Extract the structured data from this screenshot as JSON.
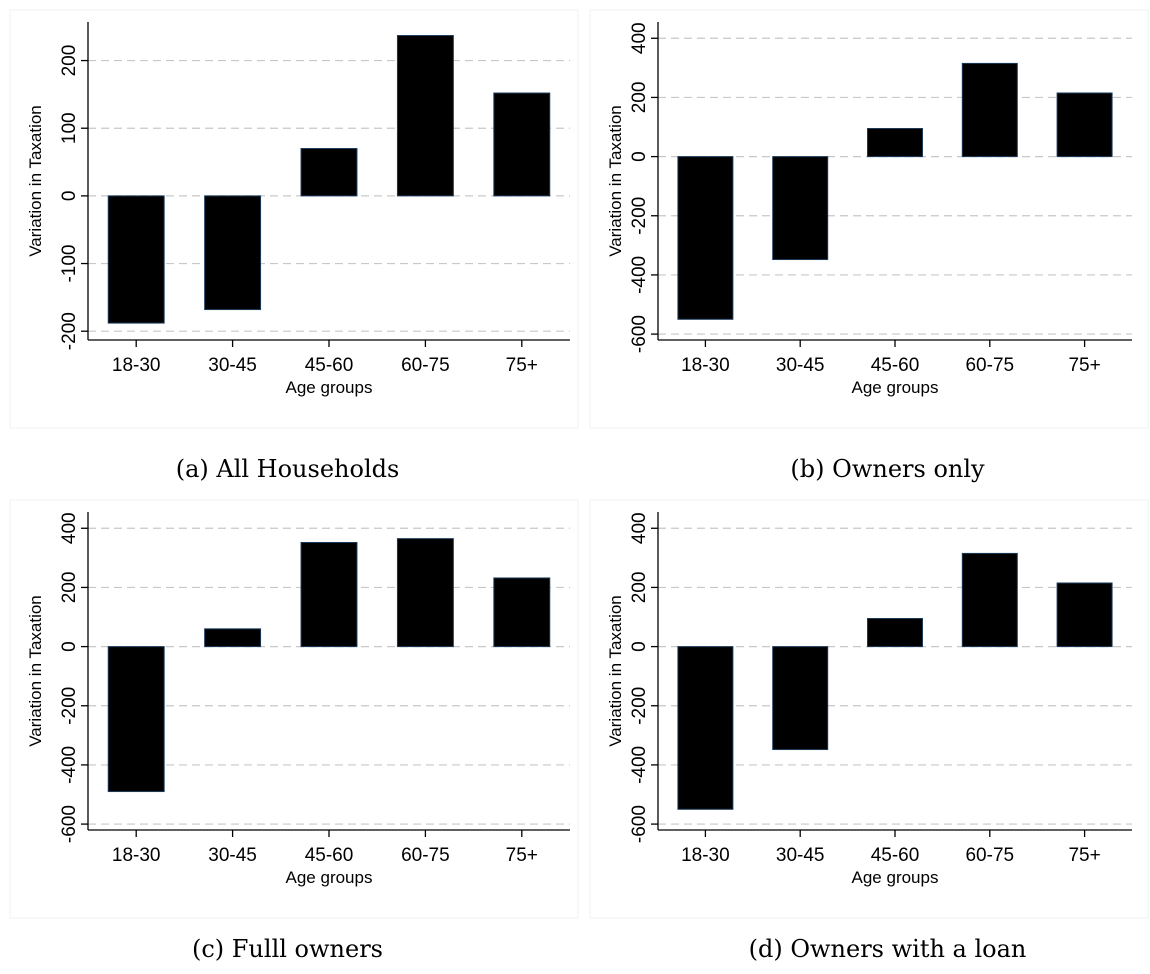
{
  "chart_data": [
    {
      "type": "bar",
      "caption": "(a) All Households",
      "xlabel": "Age groups",
      "ylabel": "Variation in Taxation",
      "categories": [
        "18-30",
        "30-45",
        "45-60",
        "60-75",
        "75+"
      ],
      "values": [
        -188,
        -168,
        70,
        237,
        152
      ],
      "yticks": [
        "-200",
        "-100",
        "0",
        "100",
        "200"
      ],
      "ylim": [
        -213,
        257
      ],
      "grid": true
    },
    {
      "type": "bar",
      "caption": "(b) Owners only",
      "xlabel": "Age groups",
      "ylabel": "Variation in Taxation",
      "categories": [
        "18-30",
        "30-45",
        "45-60",
        "60-75",
        "75+"
      ],
      "values": [
        -550,
        -348,
        95,
        315,
        215
      ],
      "yticks": [
        "-600",
        "-400",
        "-200",
        "0",
        "200",
        "400"
      ],
      "ylim": [
        -620,
        455
      ],
      "grid": true
    },
    {
      "type": "bar",
      "caption": "(c) Fulll owners",
      "xlabel": "Age groups",
      "ylabel": "Variation in Taxation",
      "categories": [
        "18-30",
        "30-45",
        "45-60",
        "60-75",
        "75+"
      ],
      "values": [
        -490,
        60,
        352,
        365,
        232
      ],
      "yticks": [
        "-600",
        "-400",
        "-200",
        "0",
        "200",
        "400"
      ],
      "ylim": [
        -620,
        455
      ],
      "grid": true
    },
    {
      "type": "bar",
      "caption": "(d) Owners with a loan",
      "xlabel": "Age groups",
      "ylabel": "Variation in Taxation",
      "categories": [
        "18-30",
        "30-45",
        "45-60",
        "60-75",
        "75+"
      ],
      "values": [
        -550,
        -348,
        95,
        315,
        215
      ],
      "yticks": [
        "-600",
        "-400",
        "-200",
        "0",
        "200",
        "400"
      ],
      "ylim": [
        -620,
        455
      ],
      "grid": true
    }
  ]
}
